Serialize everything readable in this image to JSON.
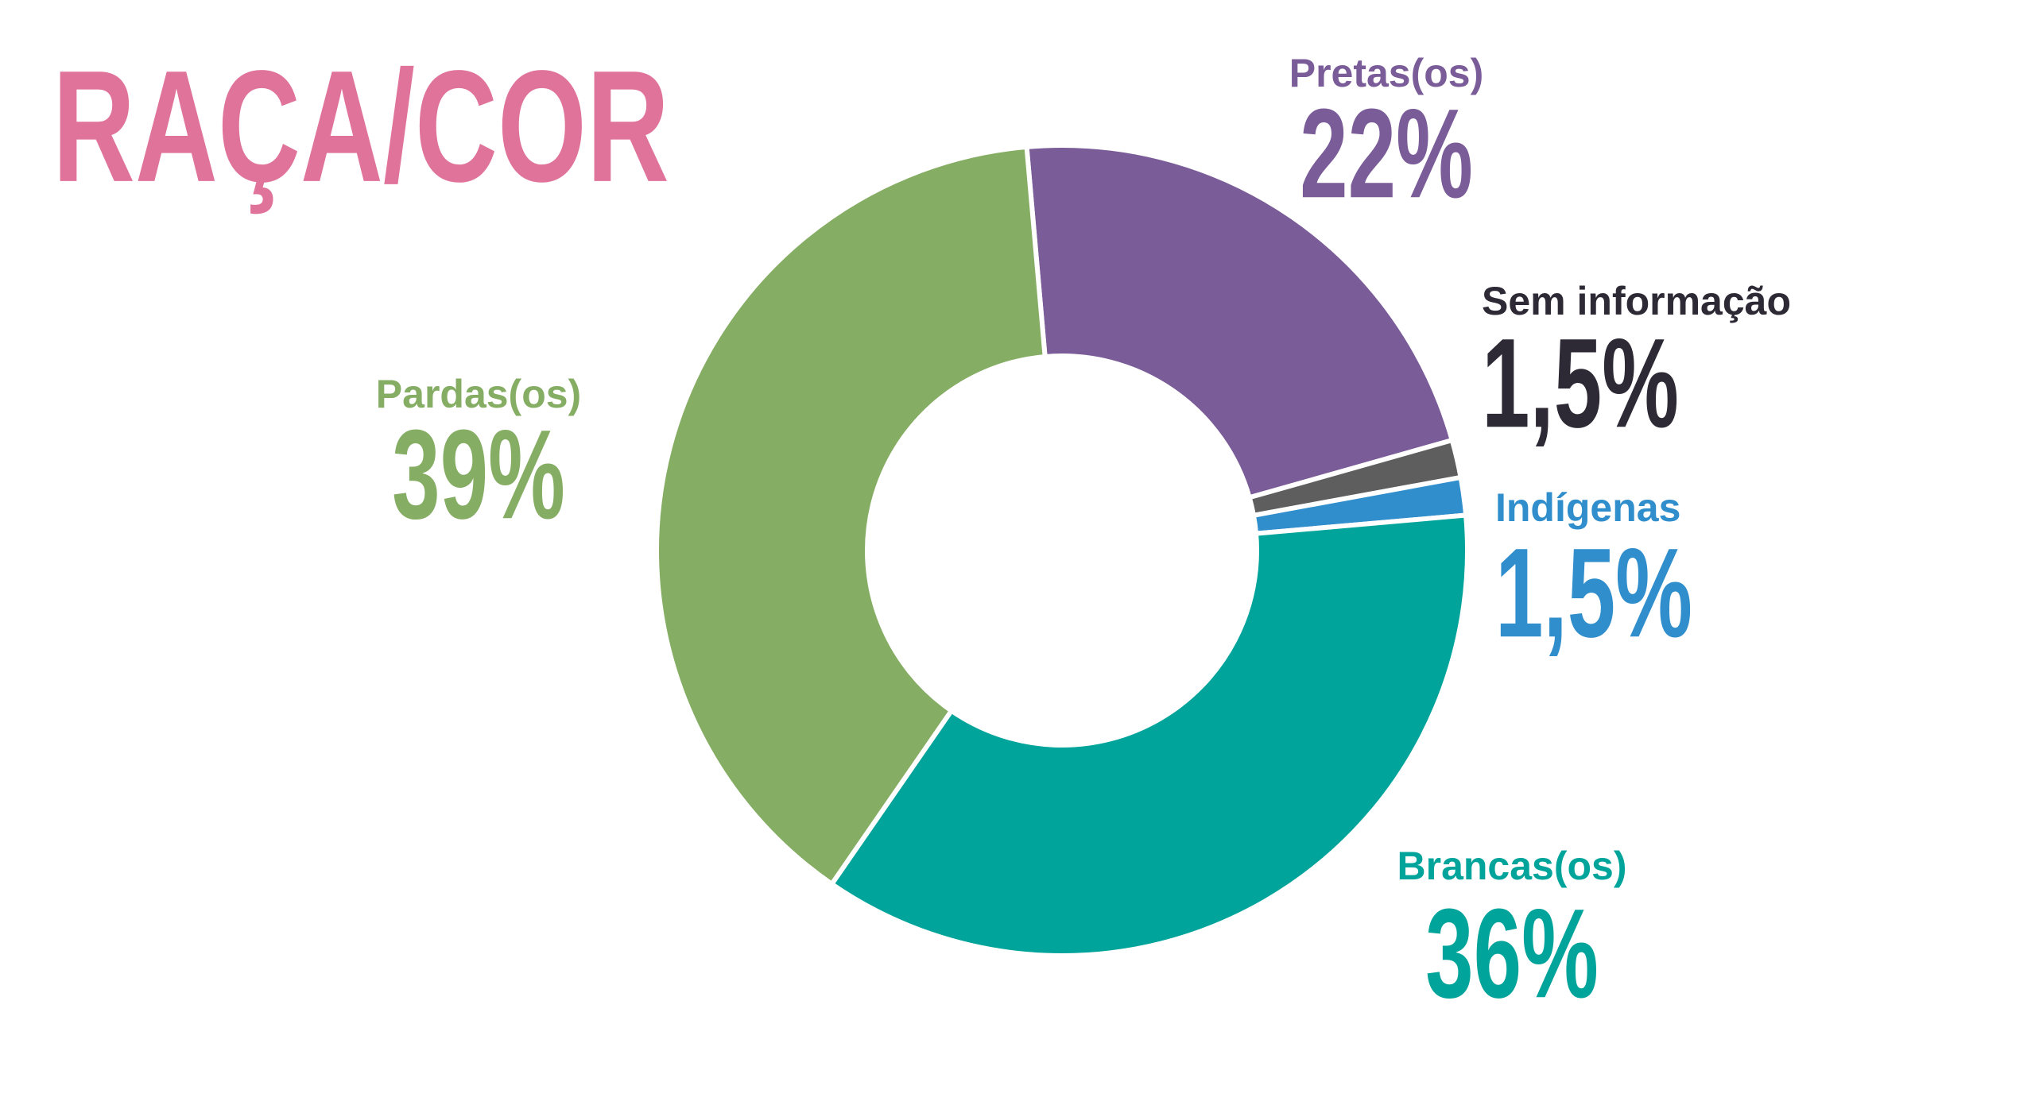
{
  "chart_data": {
    "type": "donut",
    "title": "RAÇA/COR",
    "categories": [
      "Pretas(os)",
      "Sem informação",
      "Indígenas",
      "Brancas(os)",
      "Pardas(os)"
    ],
    "values": [
      22,
      1.5,
      1.5,
      36,
      39
    ],
    "value_labels": [
      "22%",
      "1,5%",
      "1,5%",
      "36%",
      "39%"
    ],
    "colors": [
      "#7a5c98",
      "#5e5e5e",
      "#2f8ecb",
      "#00a49a",
      "#86ad64"
    ]
  }
}
